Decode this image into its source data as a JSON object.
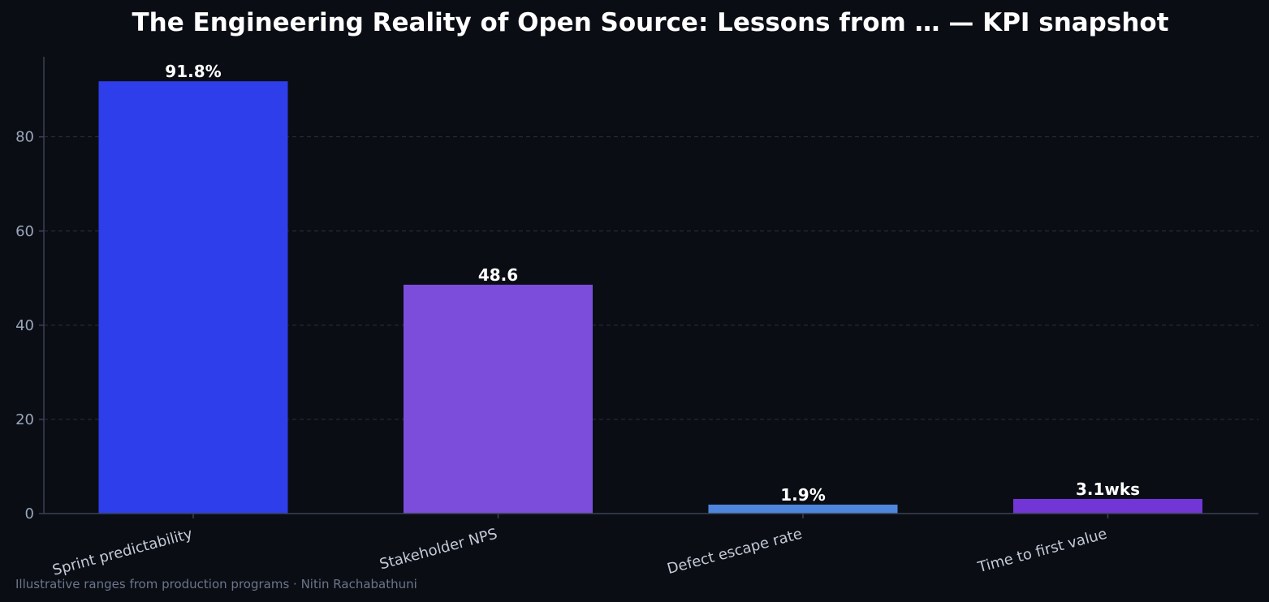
{
  "chart_data": {
    "type": "bar",
    "title": "The Engineering Reality of Open Source: Lessons from … — KPI snapshot",
    "categories": [
      "Sprint predictability",
      "Stakeholder NPS",
      "Defect escape rate",
      "Time to first value"
    ],
    "values": [
      91.8,
      48.6,
      1.9,
      3.1
    ],
    "data_labels": [
      "91.8%",
      "48.6",
      "1.9%",
      "3.1wks"
    ],
    "colors": [
      "#2e3eea",
      "#7c4ddb",
      "#4f86dd",
      "#7336d6"
    ],
    "xlabel": "",
    "ylabel": "",
    "ylim": [
      0,
      97
    ],
    "yticks": [
      0,
      20,
      40,
      60,
      80
    ],
    "grid": true,
    "legend": "none"
  },
  "footnote": "Illustrative ranges from production programs · Nitin Rachabathuni"
}
